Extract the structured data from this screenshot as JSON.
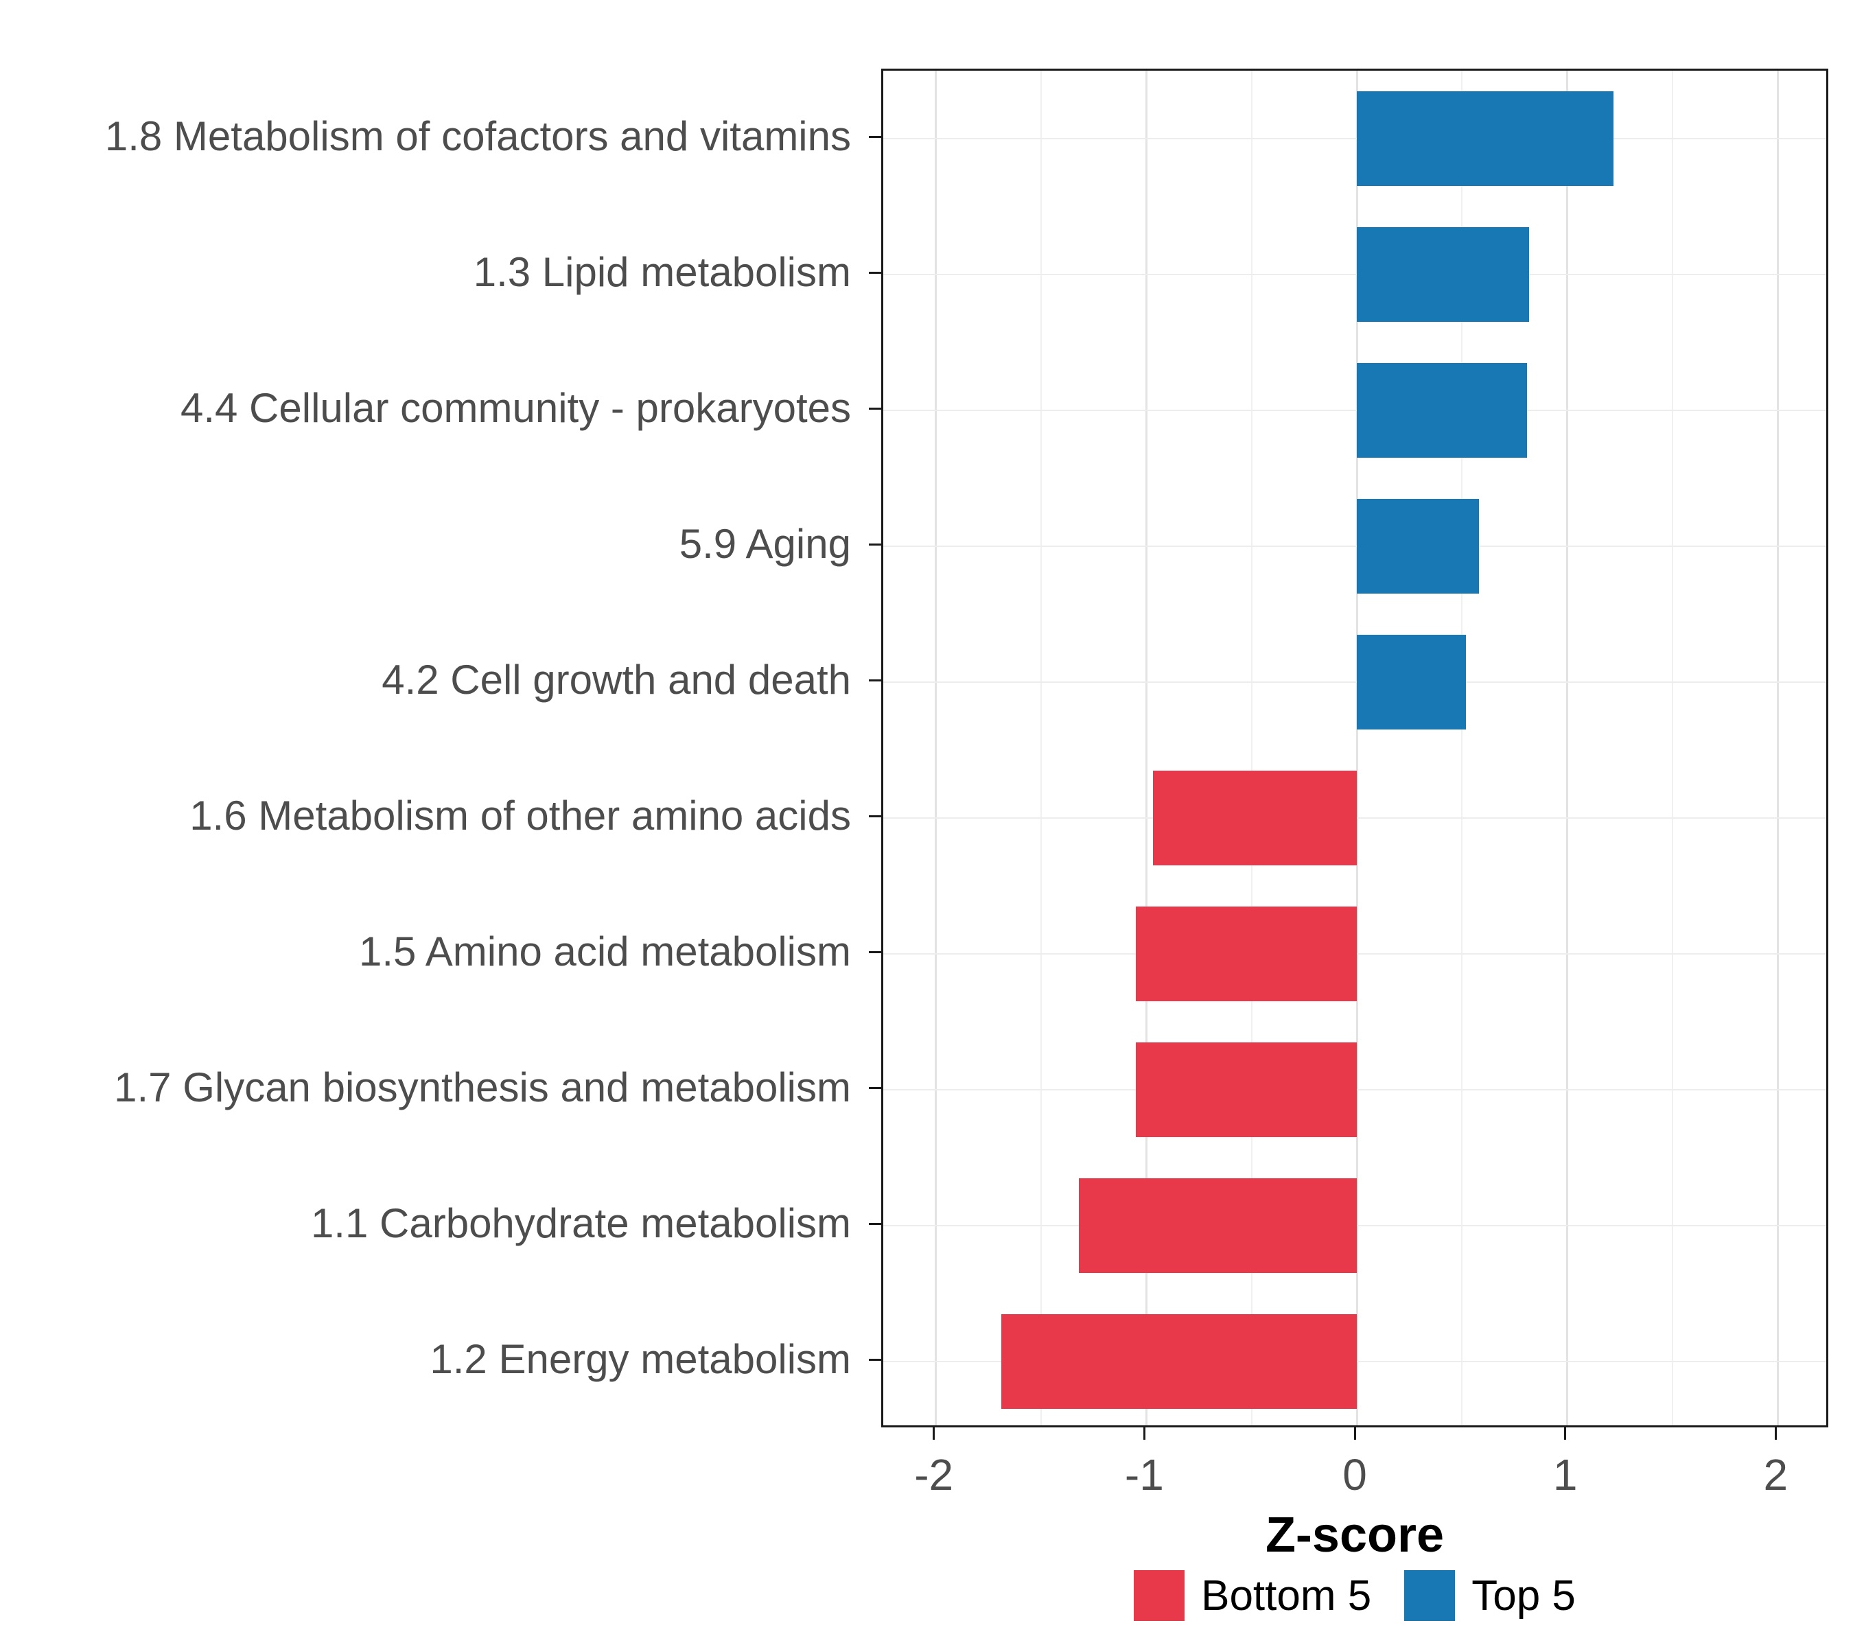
{
  "chart_data": {
    "type": "bar",
    "orientation": "horizontal",
    "title": "",
    "xlabel": "Z-score",
    "ylabel": "",
    "xlim": [
      -2.25,
      2.25
    ],
    "x_ticks": [
      -2,
      -1,
      0,
      1,
      2
    ],
    "x_minor_ticks": [
      -1.5,
      -0.5,
      0.5,
      1.5
    ],
    "grid": true,
    "legend_position": "bottom",
    "categories": [
      "1.8 Metabolism of cofactors and vitamins",
      "1.3 Lipid metabolism",
      "4.4 Cellular community - prokaryotes",
      "5.9 Aging",
      "4.2 Cell growth and death",
      "1.6 Metabolism of other amino acids",
      "1.5 Amino acid metabolism",
      "1.7 Glycan biosynthesis and metabolism",
      "1.1 Carbohydrate metabolism",
      "1.2 Energy metabolism"
    ],
    "values": [
      1.22,
      0.82,
      0.81,
      0.58,
      0.52,
      -0.97,
      -1.05,
      -1.05,
      -1.32,
      -1.69
    ],
    "groups": [
      "Top 5",
      "Top 5",
      "Top 5",
      "Top 5",
      "Top 5",
      "Bottom 5",
      "Bottom 5",
      "Bottom 5",
      "Bottom 5",
      "Bottom 5"
    ],
    "colors": {
      "Top 5": "#1878b4",
      "Bottom 5": "#e8394a"
    },
    "legend": {
      "entries": [
        {
          "label": "Bottom 5",
          "color": "#e8394a"
        },
        {
          "label": "Top 5",
          "color": "#1878b4"
        }
      ]
    }
  }
}
